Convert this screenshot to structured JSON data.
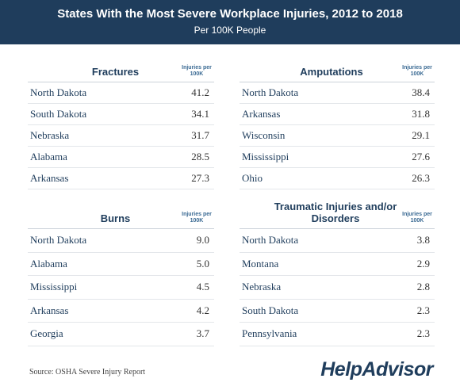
{
  "header": {
    "title": "States With the Most Severe Workplace Injuries, 2012 to 2018",
    "subtitle": "Per 100K People"
  },
  "tables": [
    {
      "title": "Fractures",
      "column_header": "Injuries per 100K",
      "rows": [
        [
          "North Dakota",
          "41.2"
        ],
        [
          "South Dakota",
          "34.1"
        ],
        [
          "Nebraska",
          "31.7"
        ],
        [
          "Alabama",
          "28.5"
        ],
        [
          "Arkansas",
          "27.3"
        ]
      ]
    },
    {
      "title": "Amputations",
      "column_header": "Injuries per 100K",
      "rows": [
        [
          "North Dakota",
          "38.4"
        ],
        [
          "Arkansas",
          "31.8"
        ],
        [
          "Wisconsin",
          "29.1"
        ],
        [
          "Mississippi",
          "27.6"
        ],
        [
          "Ohio",
          "26.3"
        ]
      ]
    },
    {
      "title": "Burns",
      "column_header": "Injuries per 100K",
      "rows": [
        [
          "North Dakota",
          "9.0"
        ],
        [
          "Alabama",
          "5.0"
        ],
        [
          "Mississippi",
          "4.5"
        ],
        [
          "Arkansas",
          "4.2"
        ],
        [
          "Georgia",
          "3.7"
        ]
      ]
    },
    {
      "title": "Traumatic Injuries and/or Disorders",
      "column_header": "Injuries per 100K",
      "rows": [
        [
          "North Dakota",
          "3.8"
        ],
        [
          "Montana",
          "2.9"
        ],
        [
          "Nebraska",
          "2.8"
        ],
        [
          "South Dakota",
          "2.3"
        ],
        [
          "Pennsylvania",
          "2.3"
        ]
      ]
    }
  ],
  "footer": {
    "source": "Source: OSHA Severe Injury Report",
    "logo": "HelpAdvisor"
  }
}
